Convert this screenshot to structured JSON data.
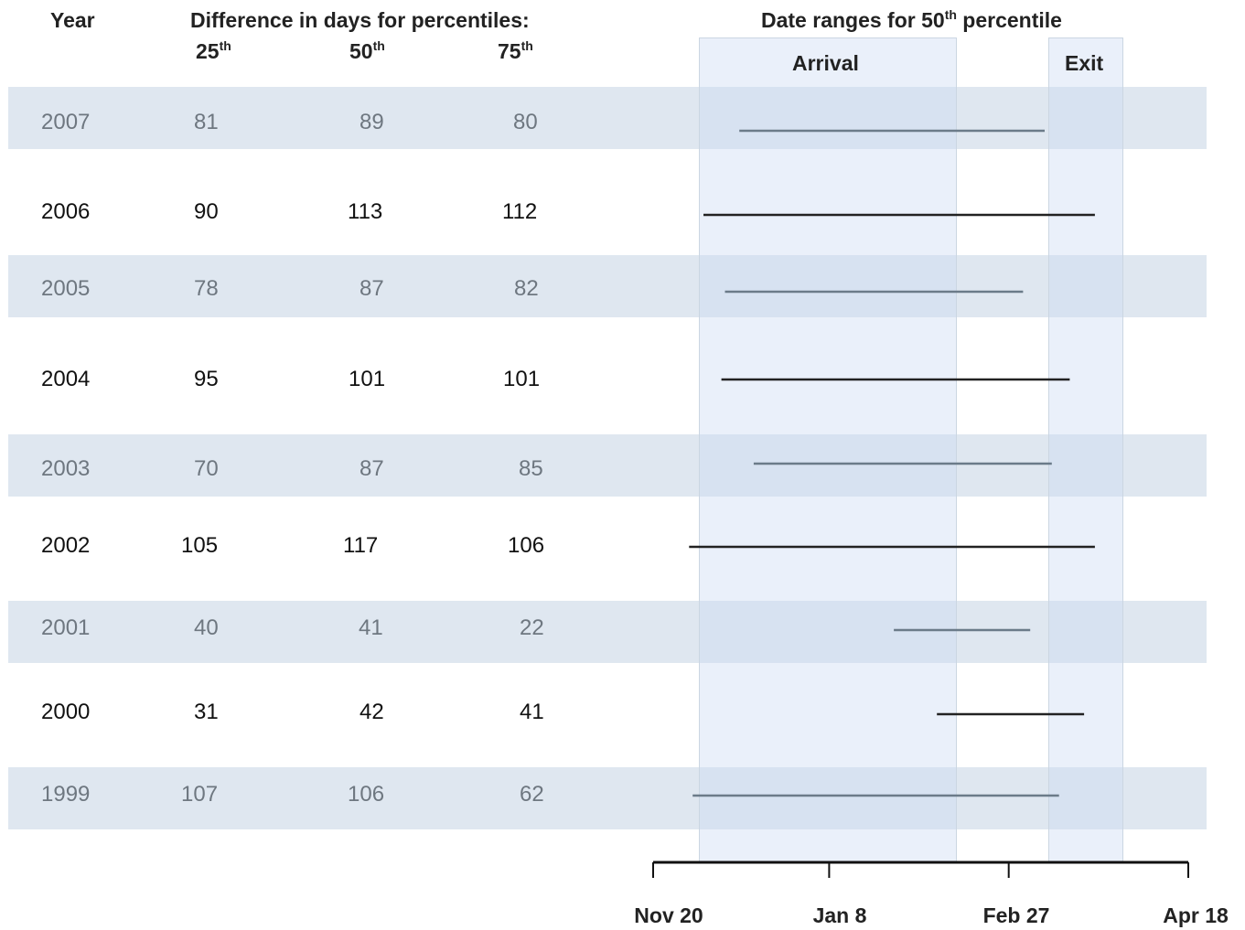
{
  "table": {
    "year_header": "Year",
    "diff_header": "Difference in days for percentiles:",
    "percentiles": [
      {
        "num": "25",
        "sup": "th"
      },
      {
        "num": "50",
        "sup": "th"
      },
      {
        "num": "75",
        "sup": "th"
      }
    ],
    "rows": [
      {
        "year": "2007",
        "p25": "81",
        "p50": "89",
        "p75": "80",
        "shaded": true
      },
      {
        "year": "2006",
        "p25": "90",
        "p50": "113",
        "p75": "112",
        "shaded": false
      },
      {
        "year": "2005",
        "p25": "78",
        "p50": "87",
        "p75": "82",
        "shaded": true
      },
      {
        "year": "2004",
        "p25": "95",
        "p50": "101",
        "p75": "101",
        "shaded": false
      },
      {
        "year": "2003",
        "p25": "70",
        "p50": "87",
        "p75": "85",
        "shaded": true
      },
      {
        "year": "2002",
        "p25": "105",
        "p50": "117",
        "p75": "106",
        "shaded": false
      },
      {
        "year": "2001",
        "p25": "40",
        "p50": "41",
        "p75": "22",
        "shaded": true
      },
      {
        "year": "2000",
        "p25": "31",
        "p50": "42",
        "p75": "41",
        "shaded": false
      },
      {
        "year": "1999",
        "p25": "107",
        "p50": "106",
        "p75": "62",
        "shaded": true
      }
    ]
  },
  "chart_data": {
    "type": "range",
    "title_prefix": "Date ranges for 50",
    "title_sup": "th",
    "title_suffix": " percentile",
    "regions": [
      {
        "label": "Arrival",
        "start": "Nov 30",
        "end": "Feb 6"
      },
      {
        "label": "Exit",
        "start": "Mar 3",
        "end": "Mar 23"
      }
    ],
    "x_ticks": [
      "Nov 20",
      "Jan 8",
      "Feb 27",
      "Apr 18"
    ],
    "xlim": [
      "Nov 20",
      "Apr 18"
    ],
    "series": [
      {
        "year": "2007",
        "start": "Dec 14",
        "end": "Mar 9"
      },
      {
        "year": "2006",
        "start": "Dec 4",
        "end": "Mar 23"
      },
      {
        "year": "2005",
        "start": "Dec 10",
        "end": "Mar 3"
      },
      {
        "year": "2004",
        "start": "Dec 9",
        "end": "Mar 16"
      },
      {
        "year": "2003",
        "start": "Dec 18",
        "end": "Mar 11"
      },
      {
        "year": "2002",
        "start": "Nov 30",
        "end": "Mar 23"
      },
      {
        "year": "2001",
        "start": "Jan 26",
        "end": "Mar 5"
      },
      {
        "year": "2000",
        "start": "Feb 7",
        "end": "Mar 20"
      },
      {
        "year": "1999",
        "start": "Dec 1",
        "end": "Mar 13"
      }
    ],
    "colors": {
      "shaded_line": "#6b7b89",
      "plain_line": "#222222",
      "band": "#dfe7f0",
      "region": "#cddcf2"
    }
  }
}
